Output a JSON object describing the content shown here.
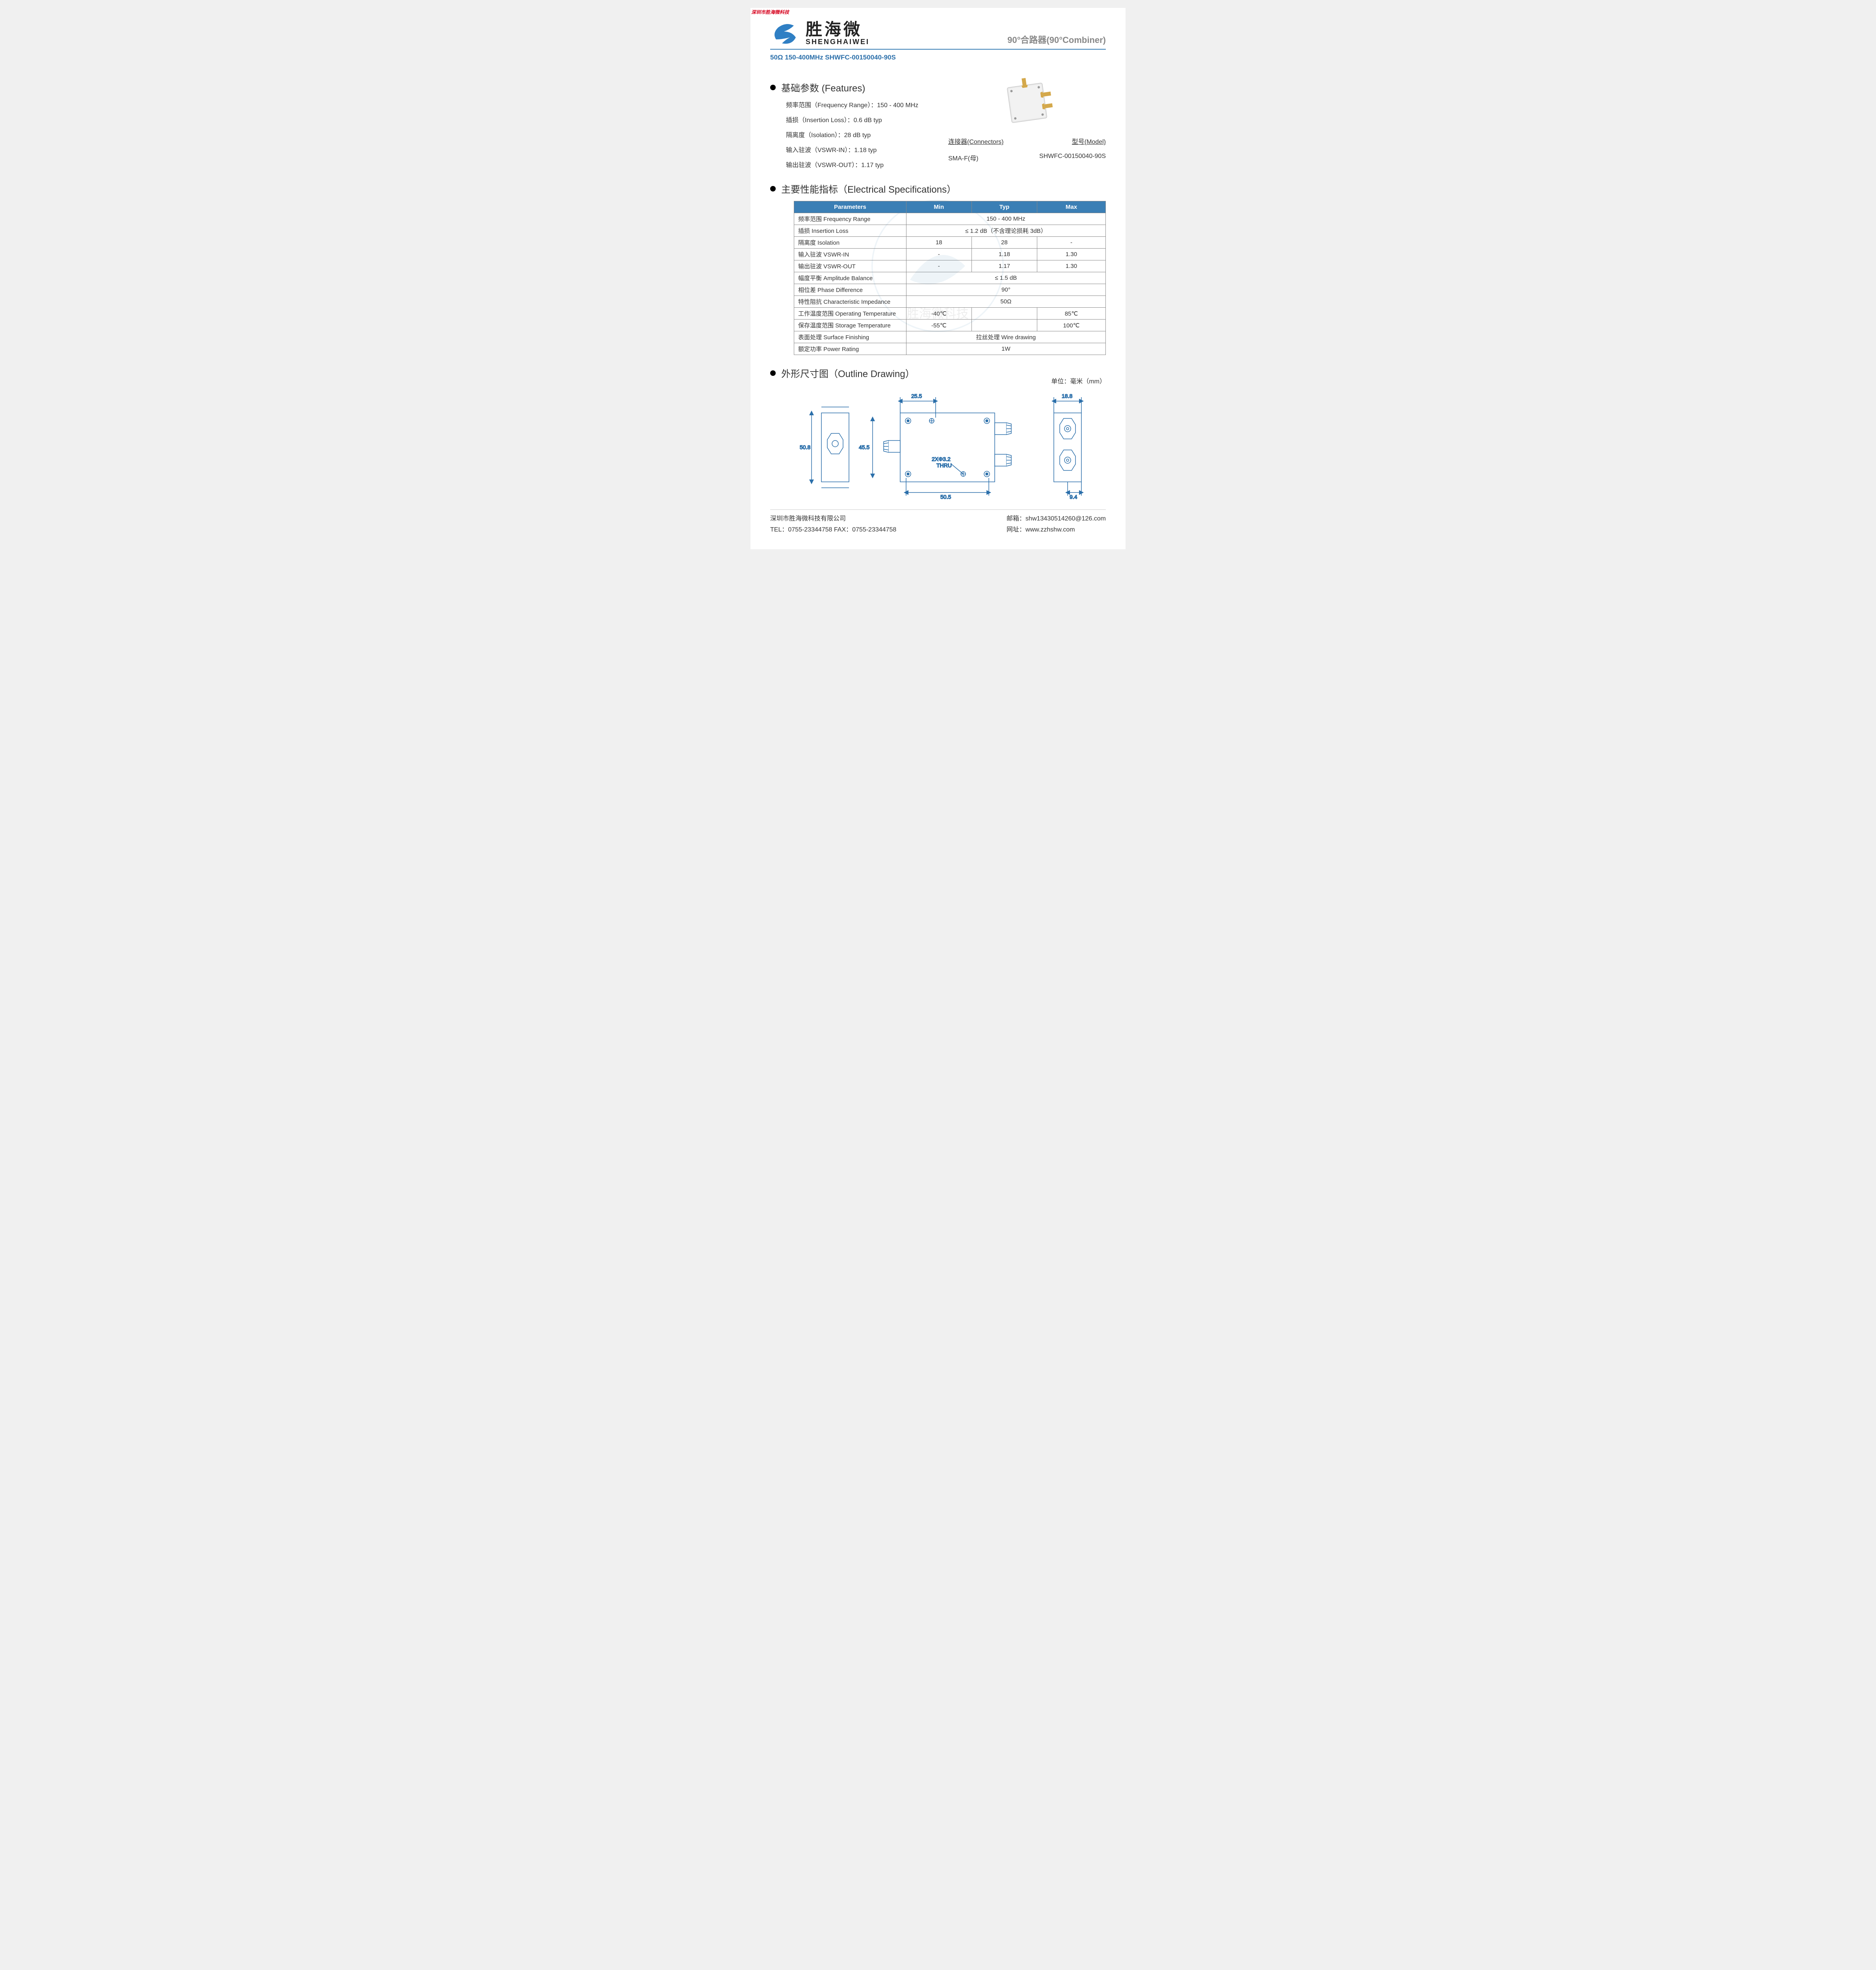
{
  "stamp": "深圳市胜海微科技",
  "logo": {
    "cn": "胜海微",
    "en": "SHENGHAIWEI"
  },
  "title_right": "90°合路器(90°Combiner)",
  "subheader": "50Ω    150-400MHz   SHWFC-00150040-90S",
  "sections": {
    "features": "基础参数  (Features)",
    "specs": "主要性能指标（Electrical Specifications）",
    "outline": "外形尺寸图（Outline Drawing）"
  },
  "features": [
    "频率范围（Frequency Range）：150 - 400 MHz",
    "插损（Insertion Loss）：0.6 dB typ",
    "隔离度（Isolation）：28 dB typ",
    "输入驻波（VSWR-IN）：1.18 typ",
    "输出驻波（VSWR-OUT）：1.17 typ"
  ],
  "connectors": {
    "head_left": "连接器(Connectors)",
    "head_right": "型号(Model)",
    "val_left": "SMA-F(母)",
    "val_right": "SHWFC-00150040-90S"
  },
  "spec_table": {
    "headers": [
      "Parameters",
      "Min",
      "Typ",
      "Max"
    ],
    "rows": [
      {
        "param": "频率范围 Frequency Range",
        "span": "150 - 400 MHz"
      },
      {
        "param": "插损  Insertion Loss",
        "span": "≤ 1.2 dB（不含理论损耗 3dB）"
      },
      {
        "param": "隔离度 Isolation",
        "min": "18",
        "typ": "28",
        "max": "-"
      },
      {
        "param": "输入驻波 VSWR-IN",
        "min": "-",
        "typ": "1.18",
        "max": "1.30"
      },
      {
        "param": "输出驻波 VSWR-OUT",
        "min": "-",
        "typ": "1.17",
        "max": "1.30"
      },
      {
        "param": "幅度平衡 Amplitude Balance",
        "span": "≤ 1.5 dB"
      },
      {
        "param": "相位差 Phase Difference",
        "span": "90°"
      },
      {
        "param": "特性阻抗 Characteristic Impedance",
        "span": "50Ω"
      },
      {
        "param": "工作温度范围 Operating Temperature",
        "min": "-40℃",
        "typ": "",
        "max": "85℃"
      },
      {
        "param": "保存温度范围 Storage Temperature",
        "min": "-55℃",
        "typ": "",
        "max": "100℃"
      },
      {
        "param": "表面处理 Surface Finishing",
        "span": "拉丝处理 Wire drawing"
      },
      {
        "param": "额定功率 Power Rating",
        "span": "1W"
      }
    ],
    "col_widths": [
      "36%",
      "21%",
      "21%",
      "22%"
    ],
    "header_bg": "#3b7fb5",
    "header_fg": "#ffffff",
    "border_color": "#888888"
  },
  "outline": {
    "unit": "单位：毫米（mm）",
    "dims": {
      "d1": "25.5",
      "d2": "18.8",
      "d3": "50.8",
      "d4": "45.5",
      "d5": "50.5",
      "d6": "9.4",
      "hole": "2XΦ3.2",
      "thru": "THRU"
    }
  },
  "footer": {
    "company": "深圳市胜海微科技有限公司",
    "tel": "TEL：0755-23344758  FAX：0755-23344758",
    "email": "邮箱：shw13430514260@126.com",
    "web": "网址：www.zzhshw.com"
  },
  "colors": {
    "accent": "#3b7fb5",
    "stamp": "#d6001c",
    "text": "#333333",
    "muted": "#888888"
  }
}
